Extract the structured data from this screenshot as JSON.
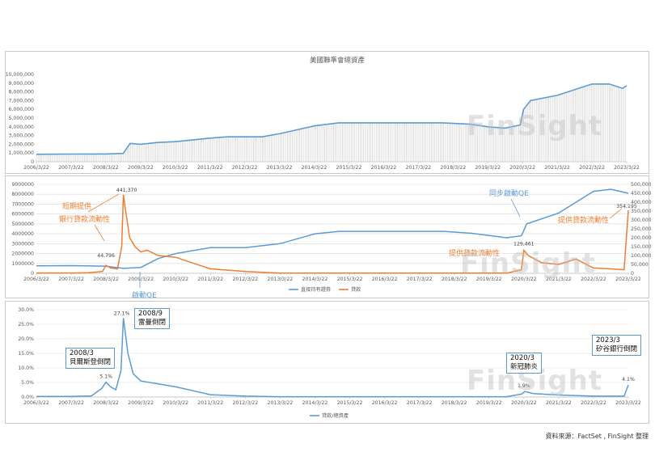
{
  "watermark": "FinSight",
  "source": "資料來源：FactSet , FinSight 整理",
  "colors": {
    "blue": "#5b9bd5",
    "orange": "#ed7d31",
    "grid": "#d9d9d9"
  },
  "x_labels": [
    "2006/3/22",
    "2007/3/22",
    "2008/3/22",
    "2009/3/22",
    "2010/3/22",
    "2011/3/22",
    "2012/3/22",
    "2013/3/22",
    "2014/3/22",
    "2015/3/22",
    "2016/3/22",
    "2017/3/22",
    "2018/3/22",
    "2019/3/22",
    "2020/3/22",
    "2021/3/22",
    "2022/3/22",
    "2023/3/22"
  ],
  "chart_data": [
    {
      "type": "area",
      "title": "美國聯準會總資產",
      "ylim": [
        0,
        10000000
      ],
      "y_ticks": [
        "0",
        "1,000,000",
        "2,000,000",
        "3,000,000",
        "4,000,000",
        "5,000,000",
        "6,000,000",
        "7,000,000",
        "8,000,000",
        "9,000,000",
        "10,000,000"
      ],
      "series": [
        {
          "x": [
            2006.22,
            2007.22,
            2008.22,
            2008.72,
            2008.92,
            2009.22,
            2009.72,
            2010.22,
            2011.22,
            2011.72,
            2012.22,
            2012.72,
            2013.22,
            2014.22,
            2014.92,
            2016.22,
            2017.22,
            2017.92,
            2018.72,
            2019.22,
            2019.72,
            2020.15,
            2020.25,
            2020.45,
            2021.22,
            2022.22,
            2022.72,
            2023.1,
            2023.22
          ],
          "values": [
            850000,
            880000,
            890000,
            950000,
            2100000,
            2000000,
            2200000,
            2300000,
            2700000,
            2850000,
            2850000,
            2850000,
            3200000,
            4100000,
            4450000,
            4450000,
            4450000,
            4450000,
            4300000,
            4000000,
            3850000,
            4200000,
            6000000,
            7000000,
            7600000,
            8900000,
            8900000,
            8400000,
            8700000
          ]
        }
      ]
    },
    {
      "type": "line",
      "ylim": [
        0,
        9000000
      ],
      "y2lim": [
        0,
        500000
      ],
      "y_ticks": [
        "0",
        "1000000",
        "2000000",
        "3000000",
        "4000000",
        "5000000",
        "6000000",
        "7000000",
        "8000000",
        "9000000"
      ],
      "y2_ticks": [
        "0",
        "50,000",
        "100,000",
        "150,000",
        "200,000",
        "250,000",
        "300,000",
        "350,000",
        "400,000",
        "450,000",
        "500,000"
      ],
      "legend": [
        "直接持有證券",
        "貸款"
      ],
      "series": [
        {
          "name": "直接持有證券",
          "axis": "left",
          "x": [
            2006.22,
            2007.22,
            2008.22,
            2008.72,
            2009.22,
            2009.72,
            2010.22,
            2011.22,
            2012.22,
            2013.22,
            2014.22,
            2014.92,
            2016.22,
            2017.92,
            2018.72,
            2019.72,
            2020.15,
            2020.3,
            2021.22,
            2022.22,
            2022.72,
            2023.22
          ],
          "values": [
            750000,
            780000,
            720000,
            500000,
            600000,
            1500000,
            2000000,
            2600000,
            2600000,
            3000000,
            4000000,
            4250000,
            4250000,
            4250000,
            4050000,
            3600000,
            3800000,
            5000000,
            6100000,
            8300000,
            8500000,
            8100000
          ]
        },
        {
          "name": "貸款",
          "axis": "right",
          "x": [
            2006.22,
            2007.22,
            2007.72,
            2008.12,
            2008.22,
            2008.35,
            2008.55,
            2008.67,
            2008.72,
            2008.82,
            2008.9,
            2009.05,
            2009.22,
            2009.4,
            2009.72,
            2010.22,
            2011.22,
            2012.22,
            2013.22,
            2019.72,
            2020.15,
            2020.22,
            2020.35,
            2020.72,
            2021.22,
            2021.72,
            2022.22,
            2022.72,
            2023.1,
            2023.22
          ],
          "values": [
            2000,
            2000,
            3000,
            10000,
            44796,
            30000,
            25000,
            150000,
            441370,
            300000,
            200000,
            150000,
            120000,
            130000,
            100000,
            90000,
            25000,
            10000,
            1000,
            1000,
            20000,
            129461,
            100000,
            60000,
            50000,
            80000,
            30000,
            25000,
            20000,
            354195
          ]
        }
      ],
      "data_labels": {
        "loan_2008_3": "44,796",
        "loan_peak_2008": "441,370",
        "loan_2020": "129,461",
        "loan_2023": "354,195"
      },
      "annotations": {
        "short_term": "短期提供",
        "bank_liquidity": "銀行貸款流動性",
        "start_qe": "啟動QE",
        "sync_qe": "同步啟動QE",
        "liquidity_2020": "提供貸款流動性",
        "liquidity_2023": "提供貸款流動性"
      }
    },
    {
      "type": "line",
      "ylim": [
        0,
        0.3
      ],
      "y_ticks": [
        "0.0%",
        "5.0%",
        "10.0%",
        "15.0%",
        "20.0%",
        "25.0%",
        "30.0%"
      ],
      "legend": [
        "貸款/總資產"
      ],
      "series": [
        {
          "name": "貸款/總資產",
          "x": [
            2006.22,
            2007.22,
            2007.8,
            2008.1,
            2008.22,
            2008.35,
            2008.5,
            2008.65,
            2008.72,
            2008.85,
            2009.0,
            2009.22,
            2009.72,
            2010.22,
            2011.22,
            2012.22,
            2013.22,
            2019.72,
            2020.15,
            2020.25,
            2020.5,
            2021.22,
            2022.22,
            2023.1,
            2023.22
          ],
          "values": [
            0.002,
            0.002,
            0.004,
            0.03,
            0.051,
            0.035,
            0.025,
            0.09,
            0.271,
            0.15,
            0.08,
            0.055,
            0.045,
            0.035,
            0.008,
            0.003,
            0.001,
            0.001,
            0.01,
            0.019,
            0.012,
            0.007,
            0.003,
            0.003,
            0.041
          ]
        }
      ],
      "data_labels": {
        "ratio_2008_3": "5.1%",
        "ratio_peak_2008": "27.1%",
        "ratio_2020": "1.9%",
        "ratio_2023": "4.1%"
      },
      "boxes": [
        {
          "date": "2008/3",
          "event": "貝爾斯登倒閉"
        },
        {
          "date": "2008/9",
          "event": "雷曼倒閉"
        },
        {
          "date": "2020/3",
          "event": "新冠肺炎"
        },
        {
          "date": "2023/3",
          "event": "矽谷銀行倒閉"
        }
      ]
    }
  ]
}
